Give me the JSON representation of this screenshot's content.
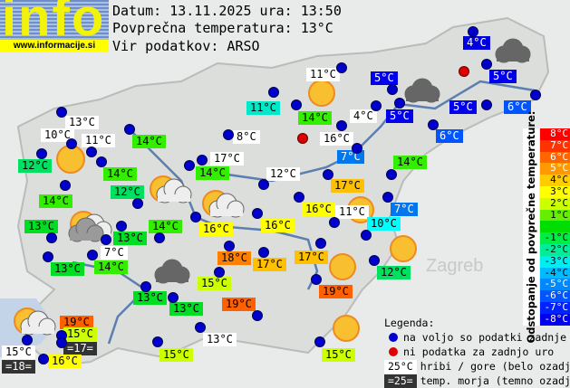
{
  "header": {
    "logo_word": "info",
    "logo_url": "www.informacije.si",
    "date_line": "Datum: 13.11.2025 ura: 13:50",
    "avg_line": "Povprečna temperatura: 13°C",
    "source_line": "Vir podatkov: ARSO"
  },
  "colors": {
    "station_ok": "#0000cc",
    "station_missing": "#dd0000",
    "mountain_bg": "#ffffff",
    "sea_bg": "#333333"
  },
  "stations": [
    {
      "t": "13°C",
      "bg": "#ffffff"
    },
    {
      "t": "10°C",
      "bg": "#ffffff"
    },
    {
      "t": "11°C",
      "bg": "#ffffff"
    },
    {
      "t": "14°C",
      "bg": "#33ee00"
    },
    {
      "t": "12°C",
      "bg": "#00e060"
    },
    {
      "t": "14°C",
      "bg": "#33ee00"
    },
    {
      "t": "12°C",
      "bg": "#00e060"
    },
    {
      "t": "14°C",
      "bg": "#33ee00"
    },
    {
      "t": "11°C",
      "bg": "#00e8c8"
    },
    {
      "t": "8°C",
      "bg": "#ffffff"
    },
    {
      "t": "17°C",
      "bg": "#ffffff"
    },
    {
      "t": "14°C",
      "bg": "#33ee00"
    },
    {
      "t": "12°C",
      "bg": "#ffffff"
    },
    {
      "t": "11°C",
      "bg": "#ffffff"
    },
    {
      "t": "14°C",
      "bg": "#33ee00"
    },
    {
      "t": "4°C",
      "bg": "#ffffff"
    },
    {
      "t": "16°C",
      "bg": "#ffffff"
    },
    {
      "t": "5°C",
      "bg": "#0000ee"
    },
    {
      "t": "5°C",
      "bg": "#0000ee"
    },
    {
      "t": "7°C",
      "bg": "#0077ee"
    },
    {
      "t": "14°C",
      "bg": "#33ee00"
    },
    {
      "t": "4°C",
      "bg": "#0000dd"
    },
    {
      "t": "5°C",
      "bg": "#0000ee"
    },
    {
      "t": "5°C",
      "bg": "#0000ee"
    },
    {
      "t": "6°C",
      "bg": "#0055ff"
    },
    {
      "t": "6°C",
      "bg": "#0055ff"
    },
    {
      "t": "17°C",
      "bg": "#ffc000"
    },
    {
      "t": "16°C",
      "bg": "#ffff00"
    },
    {
      "t": "11°C",
      "bg": "#ffffff"
    },
    {
      "t": "7°C",
      "bg": "#0077ee"
    },
    {
      "t": "10°C",
      "bg": "#00ffff"
    },
    {
      "t": "13°C",
      "bg": "#00dd22"
    },
    {
      "t": "14°C",
      "bg": "#33ee00"
    },
    {
      "t": "13°C",
      "bg": "#00dd22"
    },
    {
      "t": "16°C",
      "bg": "#ffff00"
    },
    {
      "t": "16°C",
      "bg": "#ffff00"
    },
    {
      "t": "7°C",
      "bg": "#ffffff"
    },
    {
      "t": "13°C",
      "bg": "#00dd22"
    },
    {
      "t": "14°C",
      "bg": "#33ee00"
    },
    {
      "t": "18°C",
      "bg": "#ff8000"
    },
    {
      "t": "17°C",
      "bg": "#ffc000"
    },
    {
      "t": "17°C",
      "bg": "#ffc000"
    },
    {
      "t": "12°C",
      "bg": "#00e060"
    },
    {
      "t": "15°C",
      "bg": "#ccff00"
    },
    {
      "t": "13°C",
      "bg": "#00dd22"
    },
    {
      "t": "13°C",
      "bg": "#00dd22"
    },
    {
      "t": "19°C",
      "bg": "#ff6000"
    },
    {
      "t": "19°C",
      "bg": "#ff6000"
    },
    {
      "t": "19°C",
      "bg": "#ff6000"
    },
    {
      "t": "15°C",
      "bg": "#ccff00"
    },
    {
      "t": "=17=",
      "bg": "#333333"
    },
    {
      "t": "15°C",
      "bg": "#ffffff"
    },
    {
      "t": "=18=",
      "bg": "#333333"
    },
    {
      "t": "16°C",
      "bg": "#ffff00"
    },
    {
      "t": "13°C",
      "bg": "#ffffff"
    },
    {
      "t": "15°C",
      "bg": "#ccff00"
    },
    {
      "t": "15°C",
      "bg": "#ccff00"
    }
  ],
  "scale": {
    "title": "Odstopanje od povprečne temperature:",
    "steps": [
      {
        "t": "8°C",
        "c": "#ff0000"
      },
      {
        "t": "7°C",
        "c": "#ff3300"
      },
      {
        "t": "6°C",
        "c": "#ff6600"
      },
      {
        "t": "5°C",
        "c": "#ff9900"
      },
      {
        "t": "4°C",
        "c": "#ffcc00"
      },
      {
        "t": "3°C",
        "c": "#ffff00"
      },
      {
        "t": "2°C",
        "c": "#ccff00"
      },
      {
        "t": "1°C",
        "c": "#66ee00"
      },
      {
        "t": "",
        "c": "#00dd00"
      },
      {
        "t": "-1°C",
        "c": "#00ee44"
      },
      {
        "t": "-2°C",
        "c": "#00ee99"
      },
      {
        "t": "-3°C",
        "c": "#00eeee"
      },
      {
        "t": "-4°C",
        "c": "#00bbff"
      },
      {
        "t": "-5°C",
        "c": "#0088ff"
      },
      {
        "t": "-6°C",
        "c": "#0055ff"
      },
      {
        "t": "-7°C",
        "c": "#0022ff"
      },
      {
        "t": "-8°C",
        "c": "#0000ee"
      }
    ]
  },
  "legend": {
    "title": "Legenda:",
    "ok": "na voljo so podatki zadnje ure",
    "missing": "ni podatka za zadnjo uro",
    "mountain_sample": "25°C",
    "mountain": "hribi / gore (belo ozadje)",
    "sea_sample": "=25=",
    "sea": "temp. morja (temno ozadje)"
  },
  "map_labels": {
    "zagreb": "Zagreb"
  }
}
